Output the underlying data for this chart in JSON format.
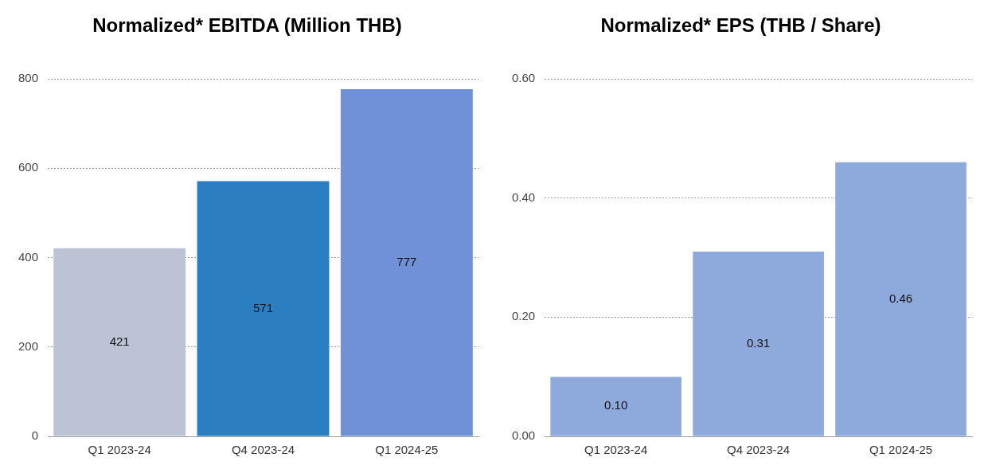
{
  "chart_data": [
    {
      "type": "bar",
      "title": "Normalized* EBITDA (Million THB)",
      "categories": [
        "Q1 2023-24",
        "Q4 2023-24",
        "Q1 2024-25"
      ],
      "values": [
        421,
        571,
        777
      ],
      "colors": [
        "#bcc3d4",
        "#2b7fc1",
        "#7191d6"
      ],
      "ylim": [
        0,
        800
      ],
      "yticks": [
        0,
        200,
        400,
        600,
        800
      ],
      "grid": "y",
      "data_labels": true
    },
    {
      "type": "bar",
      "title": "Normalized* EPS (THB / Share)",
      "categories": [
        "Q1 2023-24",
        "Q4 2023-24",
        "Q1 2024-25"
      ],
      "values": [
        0.1,
        0.31,
        0.46
      ],
      "value_labels": [
        "0.10",
        "0.31",
        "0.46"
      ],
      "colors": [
        "#8eaadc",
        "#8eaadc",
        "#8eaadc"
      ],
      "ylim": [
        0,
        0.6
      ],
      "yticks": [
        {
          "value": 0,
          "label": "0.00"
        },
        {
          "value": 0.2,
          "label": "0.20"
        },
        {
          "value": 0.4,
          "label": "0.40"
        },
        {
          "value": 0.6,
          "label": "0.60"
        }
      ],
      "grid": "y"
    }
  ]
}
